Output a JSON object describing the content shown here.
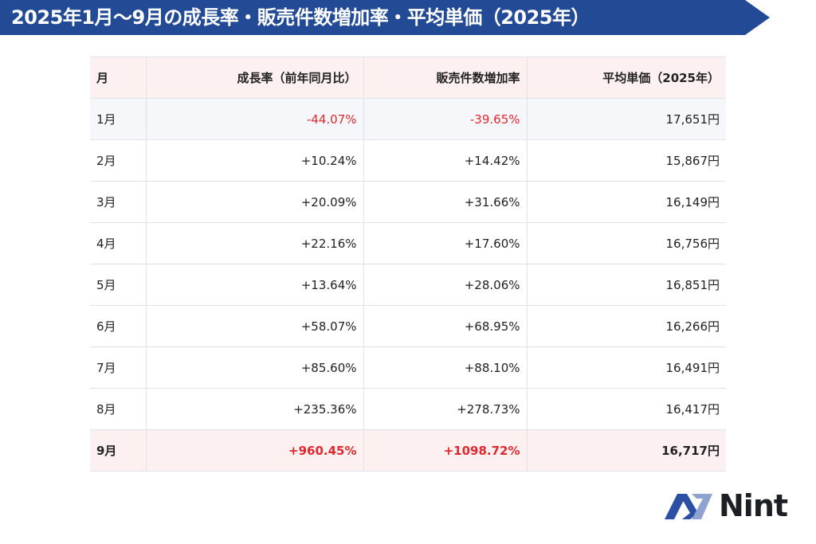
{
  "header": {
    "title": "2025年1月〜9月の成長率・販売件数増加率・平均単価（2025年）",
    "color": "#234a94"
  },
  "table": {
    "columns": [
      "月",
      "成長率（前年同月比）",
      "販売件数増加率",
      "平均単価（2025年）"
    ],
    "rows": [
      {
        "month": "1月",
        "growth": "-44.07%",
        "sales_increase": "-39.65%",
        "avg_price": "17,651円"
      },
      {
        "month": "2月",
        "growth": "+10.24%",
        "sales_increase": "+14.42%",
        "avg_price": "15,867円"
      },
      {
        "month": "3月",
        "growth": "+20.09%",
        "sales_increase": "+31.66%",
        "avg_price": "16,149円"
      },
      {
        "month": "4月",
        "growth": "+22.16%",
        "sales_increase": "+17.60%",
        "avg_price": "16,756円"
      },
      {
        "month": "5月",
        "growth": "+13.64%",
        "sales_increase": "+28.06%",
        "avg_price": "16,851円"
      },
      {
        "month": "6月",
        "growth": "+58.07%",
        "sales_increase": "+68.95%",
        "avg_price": "16,266円"
      },
      {
        "month": "7月",
        "growth": "+85.60%",
        "sales_increase": "+88.10%",
        "avg_price": "16,491円"
      },
      {
        "month": "8月",
        "growth": "+235.36%",
        "sales_increase": "+278.73%",
        "avg_price": "16,417円"
      },
      {
        "month": "9月",
        "growth": "+960.45%",
        "sales_increase": "+1098.72%",
        "avg_price": "16,717円"
      }
    ],
    "colors": {
      "negative": "#e0282e",
      "highlight_bg": "#fdf0f0",
      "alt_bg": "#f6f7fa"
    }
  },
  "logo": {
    "text": "Nint",
    "icon": "nint-logo-icon"
  }
}
